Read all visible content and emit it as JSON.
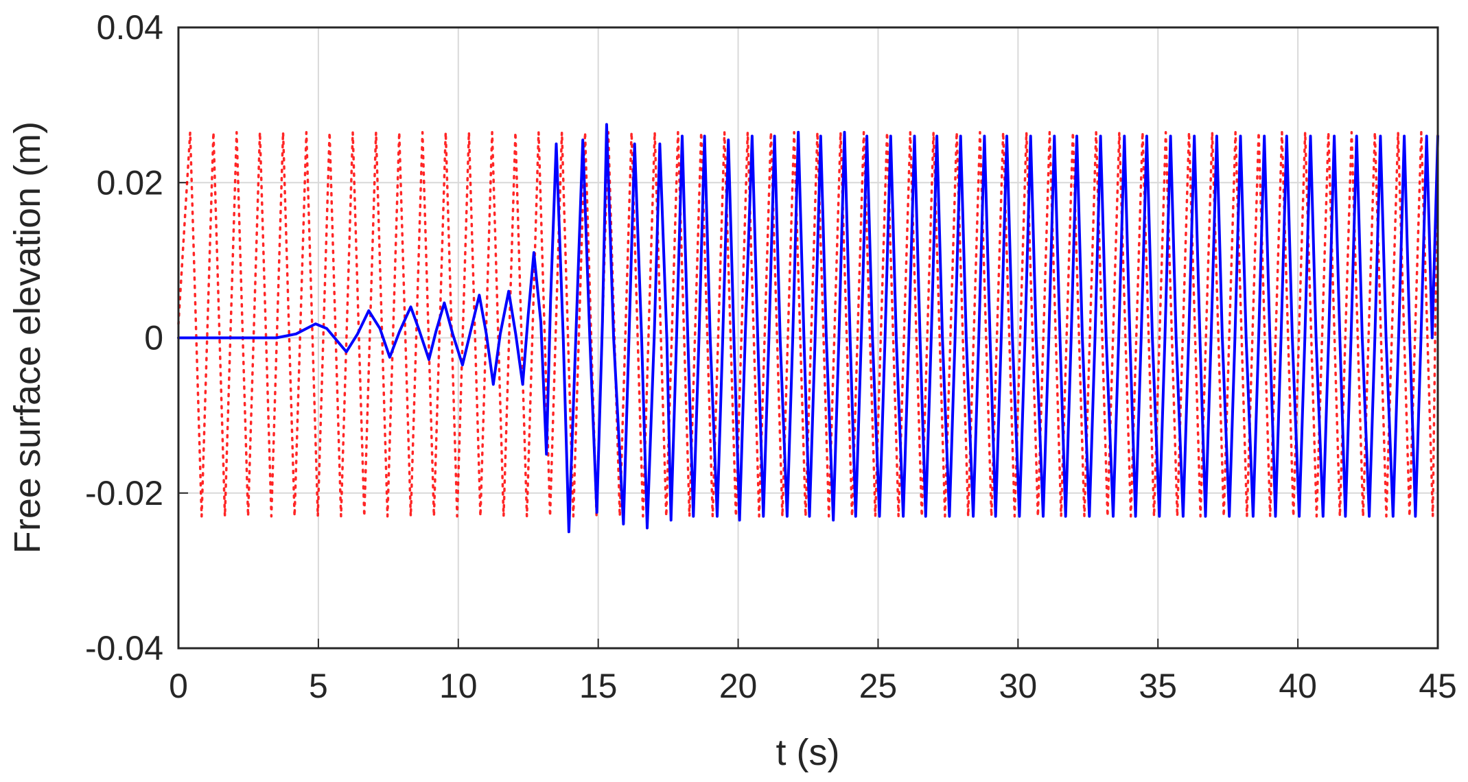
{
  "chart_data": {
    "type": "line",
    "xlabel": "t (s)",
    "ylabel": "Free surface elevation (m)",
    "xlim": [
      0,
      45
    ],
    "ylim": [
      -0.04,
      0.04
    ],
    "grid": true,
    "x_ticks": [
      0,
      5,
      10,
      15,
      20,
      25,
      30,
      35,
      40,
      45
    ],
    "x_tick_labels": [
      "0",
      "5",
      "10",
      "15",
      "20",
      "25",
      "30",
      "35",
      "40",
      "45"
    ],
    "y_ticks": [
      -0.04,
      -0.02,
      0,
      0.02,
      0.04
    ],
    "y_tick_labels": [
      "-0.04",
      "-0.02",
      "0",
      "0.02",
      "0.04"
    ],
    "colors": {
      "target": "#ff0000",
      "measured": "#0000ff",
      "grid": "#d9d9d9",
      "axis": "#262626"
    },
    "series": [
      {
        "style": "dotted",
        "color": "#ff0000",
        "period_s": 0.83,
        "crest_m": 0.0265,
        "trough_m": -0.023,
        "points": [
          [
            0,
            0.0018
          ],
          [
            0.42,
            0.0265
          ],
          [
            0.83,
            -0.023
          ],
          [
            1.25,
            0.0265
          ],
          [
            1.66,
            -0.023
          ],
          [
            2.08,
            0.0265
          ],
          [
            2.49,
            -0.023
          ],
          [
            2.91,
            0.0265
          ],
          [
            3.32,
            -0.023
          ],
          [
            3.74,
            0.0265
          ],
          [
            4.15,
            -0.023
          ],
          [
            4.57,
            0.0265
          ],
          [
            4.98,
            -0.023
          ],
          [
            5.4,
            0.0265
          ],
          [
            5.81,
            -0.023
          ],
          [
            6.23,
            0.0265
          ],
          [
            6.64,
            -0.023
          ],
          [
            7.06,
            0.0265
          ],
          [
            7.47,
            -0.023
          ],
          [
            7.89,
            0.0265
          ],
          [
            8.3,
            -0.023
          ],
          [
            8.72,
            0.0265
          ],
          [
            9.13,
            -0.023
          ],
          [
            9.55,
            0.0265
          ],
          [
            9.96,
            -0.023
          ],
          [
            10.38,
            0.0265
          ],
          [
            10.79,
            -0.023
          ],
          [
            11.21,
            0.0265
          ],
          [
            11.62,
            -0.023
          ],
          [
            12.04,
            0.0265
          ],
          [
            12.45,
            -0.023
          ],
          [
            12.87,
            0.0265
          ],
          [
            13.28,
            -0.023
          ],
          [
            13.7,
            0.0265
          ],
          [
            14.11,
            -0.023
          ],
          [
            14.53,
            0.0265
          ],
          [
            14.94,
            -0.023
          ],
          [
            15.36,
            0.0265
          ],
          [
            15.77,
            -0.023
          ],
          [
            16.19,
            0.0265
          ],
          [
            16.6,
            -0.023
          ],
          [
            17.02,
            0.0265
          ],
          [
            17.43,
            -0.023
          ],
          [
            17.85,
            0.0265
          ],
          [
            18.26,
            -0.023
          ],
          [
            18.68,
            0.0265
          ],
          [
            19.09,
            -0.023
          ],
          [
            19.51,
            0.0265
          ],
          [
            19.92,
            -0.023
          ],
          [
            20.34,
            0.0265
          ],
          [
            20.75,
            -0.023
          ],
          [
            21.17,
            0.0265
          ],
          [
            21.58,
            -0.023
          ],
          [
            22.0,
            0.0265
          ],
          [
            22.41,
            -0.023
          ],
          [
            22.83,
            0.0265
          ],
          [
            23.24,
            -0.023
          ],
          [
            23.66,
            0.0265
          ],
          [
            24.07,
            -0.023
          ],
          [
            24.49,
            0.0265
          ],
          [
            24.9,
            -0.023
          ],
          [
            25.32,
            0.0265
          ],
          [
            25.73,
            -0.023
          ],
          [
            26.15,
            0.0265
          ],
          [
            26.56,
            -0.023
          ],
          [
            26.98,
            0.0265
          ],
          [
            27.39,
            -0.023
          ],
          [
            27.81,
            0.0265
          ],
          [
            28.22,
            -0.023
          ],
          [
            28.64,
            0.0265
          ],
          [
            29.05,
            -0.023
          ],
          [
            29.47,
            0.0265
          ],
          [
            29.88,
            -0.023
          ],
          [
            30.3,
            0.0265
          ],
          [
            30.71,
            -0.023
          ],
          [
            31.13,
            0.0265
          ],
          [
            31.54,
            -0.023
          ],
          [
            31.96,
            0.0265
          ],
          [
            32.37,
            -0.023
          ],
          [
            32.79,
            0.0265
          ],
          [
            33.2,
            -0.023
          ],
          [
            33.62,
            0.0265
          ],
          [
            34.03,
            -0.023
          ],
          [
            34.45,
            0.0265
          ],
          [
            34.86,
            -0.023
          ],
          [
            35.28,
            0.0265
          ],
          [
            35.69,
            -0.023
          ],
          [
            36.11,
            0.0265
          ],
          [
            36.52,
            -0.023
          ],
          [
            36.94,
            0.0265
          ],
          [
            37.35,
            -0.023
          ],
          [
            37.77,
            0.0265
          ],
          [
            38.18,
            -0.023
          ],
          [
            38.6,
            0.0265
          ],
          [
            39.01,
            -0.023
          ],
          [
            39.43,
            0.0265
          ],
          [
            39.84,
            -0.023
          ],
          [
            40.26,
            0.0265
          ],
          [
            40.67,
            -0.023
          ],
          [
            41.09,
            0.0265
          ],
          [
            41.5,
            -0.023
          ],
          [
            41.92,
            0.0265
          ],
          [
            42.33,
            -0.023
          ],
          [
            42.75,
            0.0265
          ],
          [
            43.16,
            -0.023
          ],
          [
            43.58,
            0.0265
          ],
          [
            43.99,
            -0.023
          ],
          [
            44.41,
            0.0265
          ],
          [
            44.82,
            -0.023
          ],
          [
            45,
            0.0265
          ]
        ]
      },
      {
        "style": "solid",
        "color": "#0000ff",
        "points": [
          [
            0,
            0
          ],
          [
            3.5,
            0
          ],
          [
            4.2,
            0.0005
          ],
          [
            4.9,
            0.0018
          ],
          [
            5.3,
            0.0012
          ],
          [
            6.0,
            -0.0018
          ],
          [
            6.4,
            0.0005
          ],
          [
            6.8,
            0.0035
          ],
          [
            7.2,
            0.0012
          ],
          [
            7.55,
            -0.0025
          ],
          [
            7.9,
            0.0008
          ],
          [
            8.3,
            0.004
          ],
          [
            8.6,
            0.001
          ],
          [
            8.95,
            -0.0028
          ],
          [
            9.2,
            0.0008
          ],
          [
            9.5,
            0.0045
          ],
          [
            9.8,
            0.0005
          ],
          [
            10.15,
            -0.0035
          ],
          [
            10.45,
            0.001
          ],
          [
            10.75,
            0.0055
          ],
          [
            11.0,
            0.0005
          ],
          [
            11.25,
            -0.006
          ],
          [
            11.5,
            0.0005
          ],
          [
            11.8,
            0.006
          ],
          [
            12.05,
            0.0005
          ],
          [
            12.3,
            -0.006
          ],
          [
            12.5,
            0.003
          ],
          [
            12.7,
            0.011
          ],
          [
            12.95,
            0.002
          ],
          [
            13.15,
            -0.015
          ],
          [
            13.3,
            0.005
          ],
          [
            13.5,
            0.025
          ],
          [
            13.75,
            0.0
          ],
          [
            13.95,
            -0.025
          ],
          [
            14.2,
            0.0
          ],
          [
            14.45,
            0.0255
          ],
          [
            14.7,
            0.0
          ],
          [
            14.95,
            -0.0225
          ],
          [
            15.15,
            0.002
          ],
          [
            15.3,
            0.0275
          ],
          [
            15.55,
            0.0
          ],
          [
            15.9,
            -0.024
          ],
          [
            16.1,
            0.0
          ],
          [
            16.3,
            0.025
          ],
          [
            16.55,
            0.0
          ],
          [
            16.75,
            -0.0245
          ],
          [
            17.0,
            0.0
          ],
          [
            17.2,
            0.025
          ],
          [
            17.45,
            0.0
          ],
          [
            17.6,
            -0.0235
          ],
          [
            17.8,
            0.0
          ],
          [
            18.0,
            0.026
          ],
          [
            18.2,
            0.0
          ],
          [
            18.4,
            -0.023
          ],
          [
            18.6,
            0.0
          ],
          [
            18.8,
            0.026
          ],
          [
            19.0,
            0.0
          ],
          [
            19.25,
            -0.023
          ],
          [
            19.45,
            0.0
          ],
          [
            19.65,
            0.0255
          ],
          [
            19.85,
            0.0
          ],
          [
            20.05,
            -0.0235
          ],
          [
            20.25,
            0.0
          ],
          [
            20.5,
            0.026
          ],
          [
            20.7,
            0.0
          ],
          [
            20.9,
            -0.023
          ],
          [
            21.1,
            0.0
          ],
          [
            21.3,
            0.026
          ],
          [
            21.5,
            0.0
          ],
          [
            21.75,
            -0.023
          ],
          [
            21.95,
            0.0
          ],
          [
            22.15,
            0.0265
          ],
          [
            22.35,
            0.0
          ],
          [
            22.55,
            -0.023
          ],
          [
            22.75,
            0.0
          ],
          [
            22.95,
            0.026
          ],
          [
            23.15,
            0.0
          ],
          [
            23.4,
            -0.0235
          ],
          [
            23.6,
            0.0
          ],
          [
            23.8,
            0.0265
          ],
          [
            24.0,
            0.0
          ],
          [
            24.2,
            -0.023
          ],
          [
            24.4,
            0.0
          ],
          [
            24.6,
            0.026
          ],
          [
            24.8,
            0.0
          ],
          [
            25.05,
            -0.023
          ],
          [
            25.25,
            0.0
          ],
          [
            25.45,
            0.026
          ],
          [
            25.65,
            0.0
          ],
          [
            25.9,
            -0.023
          ],
          [
            26.1,
            0.0
          ],
          [
            26.3,
            0.026
          ],
          [
            26.5,
            0.0
          ],
          [
            26.7,
            -0.023
          ],
          [
            26.9,
            0.0
          ],
          [
            27.1,
            0.026
          ],
          [
            27.3,
            0.0
          ],
          [
            27.55,
            -0.023
          ],
          [
            27.75,
            0.0
          ],
          [
            27.95,
            0.026
          ],
          [
            28.15,
            0.0
          ],
          [
            28.4,
            -0.023
          ],
          [
            28.6,
            0.0
          ],
          [
            28.8,
            0.026
          ],
          [
            29.0,
            0.0
          ],
          [
            29.2,
            -0.023
          ],
          [
            29.4,
            0.0
          ],
          [
            29.6,
            0.026
          ],
          [
            29.8,
            0.0
          ],
          [
            30.05,
            -0.023
          ],
          [
            30.25,
            0.0
          ],
          [
            30.45,
            0.026
          ],
          [
            30.65,
            0.0
          ],
          [
            30.9,
            -0.023
          ],
          [
            31.1,
            0.0
          ],
          [
            31.3,
            0.026
          ],
          [
            31.5,
            0.0
          ],
          [
            31.7,
            -0.023
          ],
          [
            31.9,
            0.0
          ],
          [
            32.1,
            0.026
          ],
          [
            32.3,
            0.0
          ],
          [
            32.55,
            -0.023
          ],
          [
            32.75,
            0.0
          ],
          [
            32.95,
            0.026
          ],
          [
            33.15,
            0.0
          ],
          [
            33.4,
            -0.023
          ],
          [
            33.6,
            0.0
          ],
          [
            33.8,
            0.026
          ],
          [
            34.0,
            0.0
          ],
          [
            34.2,
            -0.023
          ],
          [
            34.4,
            0.0
          ],
          [
            34.6,
            0.026
          ],
          [
            34.8,
            0.0
          ],
          [
            35.05,
            -0.023
          ],
          [
            35.25,
            0.0
          ],
          [
            35.45,
            0.026
          ],
          [
            35.65,
            0.0
          ],
          [
            35.9,
            -0.023
          ],
          [
            36.1,
            0.0
          ],
          [
            36.3,
            0.026
          ],
          [
            36.5,
            0.0
          ],
          [
            36.7,
            -0.023
          ],
          [
            36.9,
            0.0
          ],
          [
            37.1,
            0.026
          ],
          [
            37.3,
            0.0
          ],
          [
            37.55,
            -0.023
          ],
          [
            37.75,
            0.0
          ],
          [
            37.95,
            0.026
          ],
          [
            38.15,
            0.0
          ],
          [
            38.4,
            -0.023
          ],
          [
            38.6,
            0.0
          ],
          [
            38.8,
            0.026
          ],
          [
            39.0,
            0.0
          ],
          [
            39.2,
            -0.023
          ],
          [
            39.4,
            0.0
          ],
          [
            39.6,
            0.026
          ],
          [
            39.8,
            0.0
          ],
          [
            40.05,
            -0.023
          ],
          [
            40.25,
            0.0
          ],
          [
            40.45,
            0.026
          ],
          [
            40.65,
            0.0
          ],
          [
            40.9,
            -0.023
          ],
          [
            41.1,
            0.0
          ],
          [
            41.3,
            0.026
          ],
          [
            41.5,
            0.0
          ],
          [
            41.7,
            -0.023
          ],
          [
            41.9,
            0.0
          ],
          [
            42.1,
            0.026
          ],
          [
            42.3,
            0.0
          ],
          [
            42.55,
            -0.023
          ],
          [
            42.75,
            0.0
          ],
          [
            42.95,
            0.026
          ],
          [
            43.15,
            0.0
          ],
          [
            43.4,
            -0.023
          ],
          [
            43.6,
            0.0
          ],
          [
            43.8,
            0.026
          ],
          [
            44.0,
            0.0
          ],
          [
            44.2,
            -0.023
          ],
          [
            44.4,
            0.0
          ],
          [
            44.6,
            0.026
          ],
          [
            44.8,
            0.0
          ],
          [
            45.0,
            0.026
          ]
        ]
      }
    ]
  }
}
